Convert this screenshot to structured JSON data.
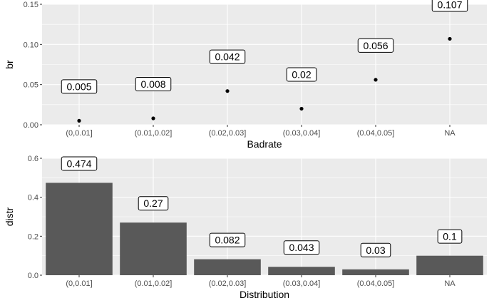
{
  "colors": {
    "panel": "#ebebeb",
    "grid_major": "#ffffff",
    "grid_minor": "#f2f2f2",
    "point": "#000000",
    "bar": "#595959",
    "tick_text": "#4d4d4d"
  },
  "chart_data": [
    {
      "type": "scatter",
      "xlabel": "Badrate",
      "ylabel": "br",
      "categories": [
        "(0,0.01]",
        "(0.01,0.02]",
        "(0.02,0.03]",
        "(0.03,0.04]",
        "(0.04,0.05]",
        "NA"
      ],
      "values": [
        0.005,
        0.008,
        0.042,
        0.02,
        0.056,
        0.107
      ],
      "labels": [
        "0.005",
        "0.008",
        "0.042",
        "0.02",
        "0.056",
        "0.107"
      ],
      "ylim": [
        0,
        0.15
      ],
      "yticks": [
        0.0,
        0.05,
        0.1,
        0.15
      ],
      "ytick_labels": [
        "0.00",
        "0.05",
        "0.10",
        "0.15"
      ],
      "grid": true,
      "legend": "none"
    },
    {
      "type": "bar",
      "xlabel": "Distribution",
      "ylabel": "distr",
      "categories": [
        "(0,0.01]",
        "(0.01,0.02]",
        "(0.02,0.03]",
        "(0.03,0.04]",
        "(0.04,0.05]",
        "NA"
      ],
      "values": [
        0.474,
        0.27,
        0.082,
        0.043,
        0.03,
        0.1
      ],
      "labels": [
        "0.474",
        "0.27",
        "0.082",
        "0.043",
        "0.03",
        "0.1"
      ],
      "ylim": [
        0,
        0.6
      ],
      "yticks": [
        0.0,
        0.2,
        0.4,
        0.6
      ],
      "ytick_labels": [
        "0.0",
        "0.2",
        "0.4",
        "0.6"
      ],
      "grid": true,
      "legend": "none"
    }
  ]
}
